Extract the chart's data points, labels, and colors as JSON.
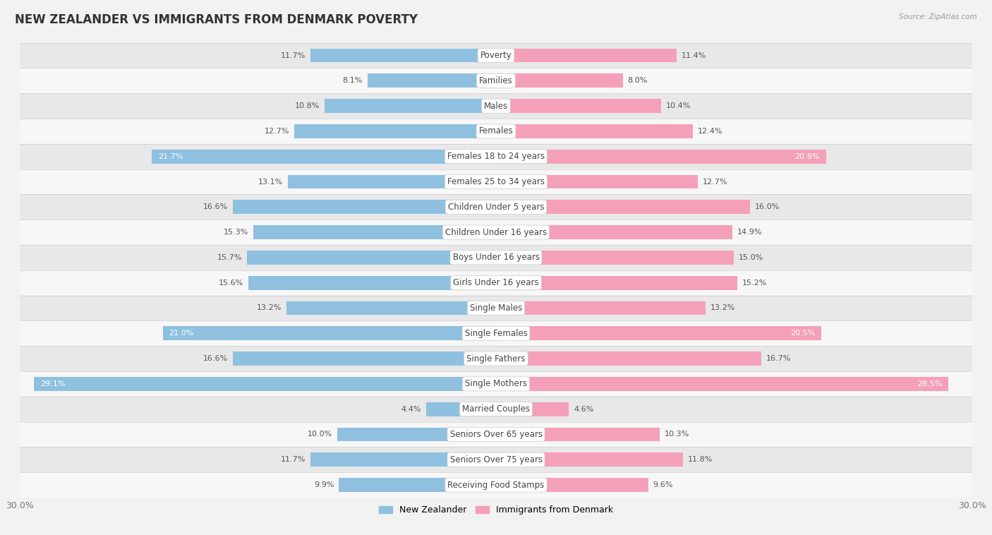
{
  "title": "NEW ZEALANDER VS IMMIGRANTS FROM DENMARK POVERTY",
  "source": "Source: ZipAtlas.com",
  "categories": [
    "Poverty",
    "Families",
    "Males",
    "Females",
    "Females 18 to 24 years",
    "Females 25 to 34 years",
    "Children Under 5 years",
    "Children Under 16 years",
    "Boys Under 16 years",
    "Girls Under 16 years",
    "Single Males",
    "Single Females",
    "Single Fathers",
    "Single Mothers",
    "Married Couples",
    "Seniors Over 65 years",
    "Seniors Over 75 years",
    "Receiving Food Stamps"
  ],
  "nz_values": [
    11.7,
    8.1,
    10.8,
    12.7,
    21.7,
    13.1,
    16.6,
    15.3,
    15.7,
    15.6,
    13.2,
    21.0,
    16.6,
    29.1,
    4.4,
    10.0,
    11.7,
    9.9
  ],
  "dk_values": [
    11.4,
    8.0,
    10.4,
    12.4,
    20.8,
    12.7,
    16.0,
    14.9,
    15.0,
    15.2,
    13.2,
    20.5,
    16.7,
    28.5,
    4.6,
    10.3,
    11.8,
    9.6
  ],
  "nz_color": "#8fc0e0",
  "dk_color": "#f4a0b8",
  "nz_label": "New Zealander",
  "dk_label": "Immigrants from Denmark",
  "bg_color": "#f2f2f2",
  "row_colors": [
    "#e8e8e8",
    "#f7f7f7"
  ],
  "axis_max": 30.0,
  "title_fontsize": 12,
  "label_fontsize": 8.5,
  "value_fontsize": 8,
  "bar_height": 0.55
}
